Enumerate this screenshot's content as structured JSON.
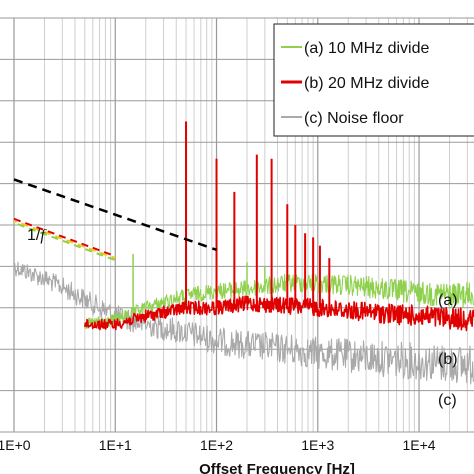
{
  "chart_data": {
    "type": "line",
    "title": "",
    "xlabel": "Offset Frequency  [Hz]",
    "ylabel": "",
    "x_scale": "log",
    "xlim": [
      1,
      40000
    ],
    "x_ticks": [
      {
        "value": 1,
        "label": "1E+0"
      },
      {
        "value": 10,
        "label": "1E+1"
      },
      {
        "value": 100,
        "label": "1E+2"
      },
      {
        "value": 1000,
        "label": "1E+3"
      },
      {
        "value": 10000,
        "label": "1E+4"
      }
    ],
    "grid": true,
    "legend_position": "top-right",
    "series": [
      {
        "name": "(a) 10 MHz divide",
        "color": "#8fd14f",
        "end_label": "(a)",
        "baseline": [
          [
            5,
            0.74
          ],
          [
            10,
            0.73
          ],
          [
            20,
            0.7
          ],
          [
            50,
            0.67
          ],
          [
            100,
            0.66
          ],
          [
            200,
            0.655
          ],
          [
            500,
            0.64
          ],
          [
            1000,
            0.64
          ],
          [
            3000,
            0.65
          ],
          [
            10000,
            0.665
          ],
          [
            40000,
            0.67
          ]
        ],
        "spikes": [
          [
            15,
            0.57
          ],
          [
            50,
            0.6
          ],
          [
            100,
            0.62
          ],
          [
            150,
            0.6
          ],
          [
            200,
            0.59
          ],
          [
            300,
            0.6
          ]
        ]
      },
      {
        "name": "(b) 20 MHz divide",
        "color": "#e00000",
        "end_label": "(b)",
        "baseline": [
          [
            5,
            0.74
          ],
          [
            10,
            0.74
          ],
          [
            20,
            0.72
          ],
          [
            50,
            0.7
          ],
          [
            100,
            0.7
          ],
          [
            200,
            0.69
          ],
          [
            500,
            0.695
          ],
          [
            1000,
            0.7
          ],
          [
            3000,
            0.71
          ],
          [
            10000,
            0.72
          ],
          [
            40000,
            0.73
          ]
        ],
        "spikes": [
          [
            50,
            0.25
          ],
          [
            100,
            0.34
          ],
          [
            150,
            0.42
          ],
          [
            250,
            0.33
          ],
          [
            350,
            0.34
          ],
          [
            500,
            0.45
          ],
          [
            600,
            0.5
          ],
          [
            750,
            0.52
          ],
          [
            900,
            0.53
          ],
          [
            1050,
            0.55
          ],
          [
            1300,
            0.58
          ]
        ]
      },
      {
        "name": "(c) Noise floor",
        "color": "#a9a9a9",
        "end_label": "(c)",
        "baseline": [
          [
            1,
            0.6
          ],
          [
            2,
            0.63
          ],
          [
            3,
            0.65
          ],
          [
            5,
            0.68
          ],
          [
            10,
            0.72
          ],
          [
            20,
            0.74
          ],
          [
            50,
            0.76
          ],
          [
            100,
            0.78
          ],
          [
            200,
            0.79
          ],
          [
            500,
            0.8
          ],
          [
            1000,
            0.81
          ],
          [
            3000,
            0.82
          ],
          [
            10000,
            0.83
          ],
          [
            40000,
            0.84
          ]
        ],
        "spikes": []
      },
      {
        "name": "",
        "color": "#000000",
        "style": "dashed",
        "points": [
          [
            1,
            0.39
          ],
          [
            100,
            0.56
          ]
        ]
      },
      {
        "name": "",
        "color": "#f0c419",
        "style": "dashed-multicolor",
        "points": [
          [
            1,
            0.49
          ],
          [
            10,
            0.58
          ]
        ]
      }
    ],
    "annotations": [
      {
        "text": "1/",
        "italic_suffix": "f",
        "x": 1.3,
        "y": 0.48
      }
    ]
  }
}
